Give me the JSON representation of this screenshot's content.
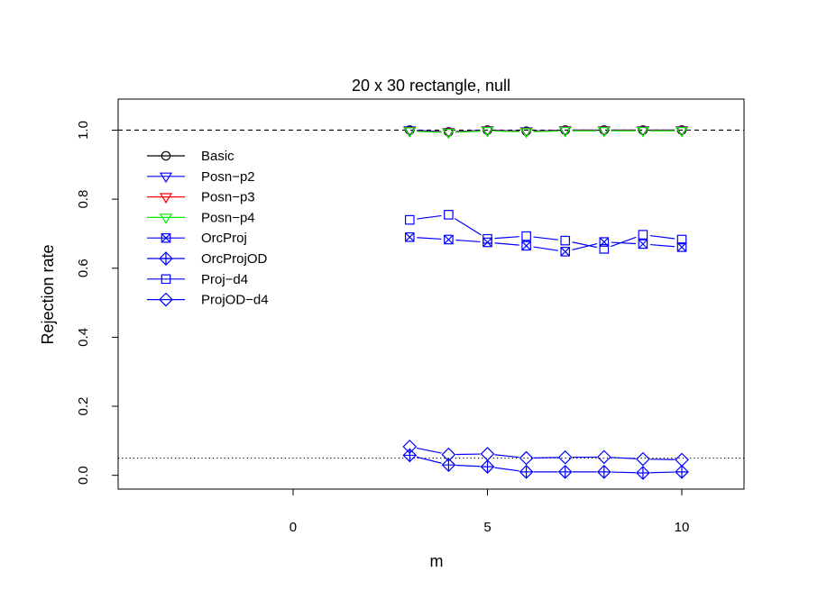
{
  "chart_data": {
    "type": "line",
    "title": "20 x 30 rectangle, null",
    "xlabel": "m",
    "ylabel": "Rejection rate",
    "xlim": [
      -4.5,
      11.6
    ],
    "ylim": [
      -0.04,
      1.09
    ],
    "xticks": [
      0,
      5,
      10
    ],
    "xtick_labels": [
      "0",
      "5",
      "10"
    ],
    "yticks": [
      0.0,
      0.2,
      0.4,
      0.6,
      0.8,
      1.0
    ],
    "ytick_labels": [
      "0.0",
      "0.2",
      "0.4",
      "0.6",
      "0.8",
      "1.0"
    ],
    "reference_lines": [
      {
        "y": 1.0,
        "style": "dashed"
      },
      {
        "y": 0.05,
        "style": "dotted"
      }
    ],
    "legend_position": "top-left",
    "x": [
      3,
      4,
      5,
      6,
      7,
      8,
      9,
      10
    ],
    "series": [
      {
        "name": "Basic",
        "color": "#000000",
        "marker": "circle",
        "values": [
          1.0,
          0.995,
          1.0,
          0.997,
          1.0,
          1.0,
          1.0,
          1.0
        ]
      },
      {
        "name": "Posn−p2",
        "color": "#0000ff",
        "marker": "triangle-down",
        "values": [
          1.0,
          0.995,
          1.0,
          0.997,
          1.0,
          1.0,
          1.0,
          1.0
        ]
      },
      {
        "name": "Posn−p3",
        "color": "#ff0000",
        "marker": "triangle-down",
        "values": [
          0.998,
          0.994,
          0.999,
          0.996,
          0.999,
          0.999,
          0.999,
          0.999
        ]
      },
      {
        "name": "Posn−p4",
        "color": "#00ee00",
        "marker": "triangle-down",
        "values": [
          0.997,
          0.993,
          0.998,
          0.995,
          0.998,
          0.998,
          0.998,
          0.998
        ]
      },
      {
        "name": "OrcProj",
        "color": "#0000ff",
        "marker": "square-x",
        "values": [
          0.69,
          0.683,
          0.675,
          0.665,
          0.648,
          0.676,
          0.67,
          0.661
        ]
      },
      {
        "name": "OrcProjOD",
        "color": "#0000ff",
        "marker": "diamond-plus",
        "values": [
          0.058,
          0.03,
          0.025,
          0.01,
          0.01,
          0.01,
          0.007,
          0.01
        ]
      },
      {
        "name": "Proj−d4",
        "color": "#0000ff",
        "marker": "square",
        "values": [
          0.74,
          0.755,
          0.685,
          0.693,
          0.68,
          0.656,
          0.697,
          0.683
        ]
      },
      {
        "name": "ProjOD−d4",
        "color": "#0000ff",
        "marker": "diamond",
        "values": [
          0.083,
          0.06,
          0.062,
          0.05,
          0.052,
          0.053,
          0.047,
          0.045
        ]
      }
    ]
  }
}
